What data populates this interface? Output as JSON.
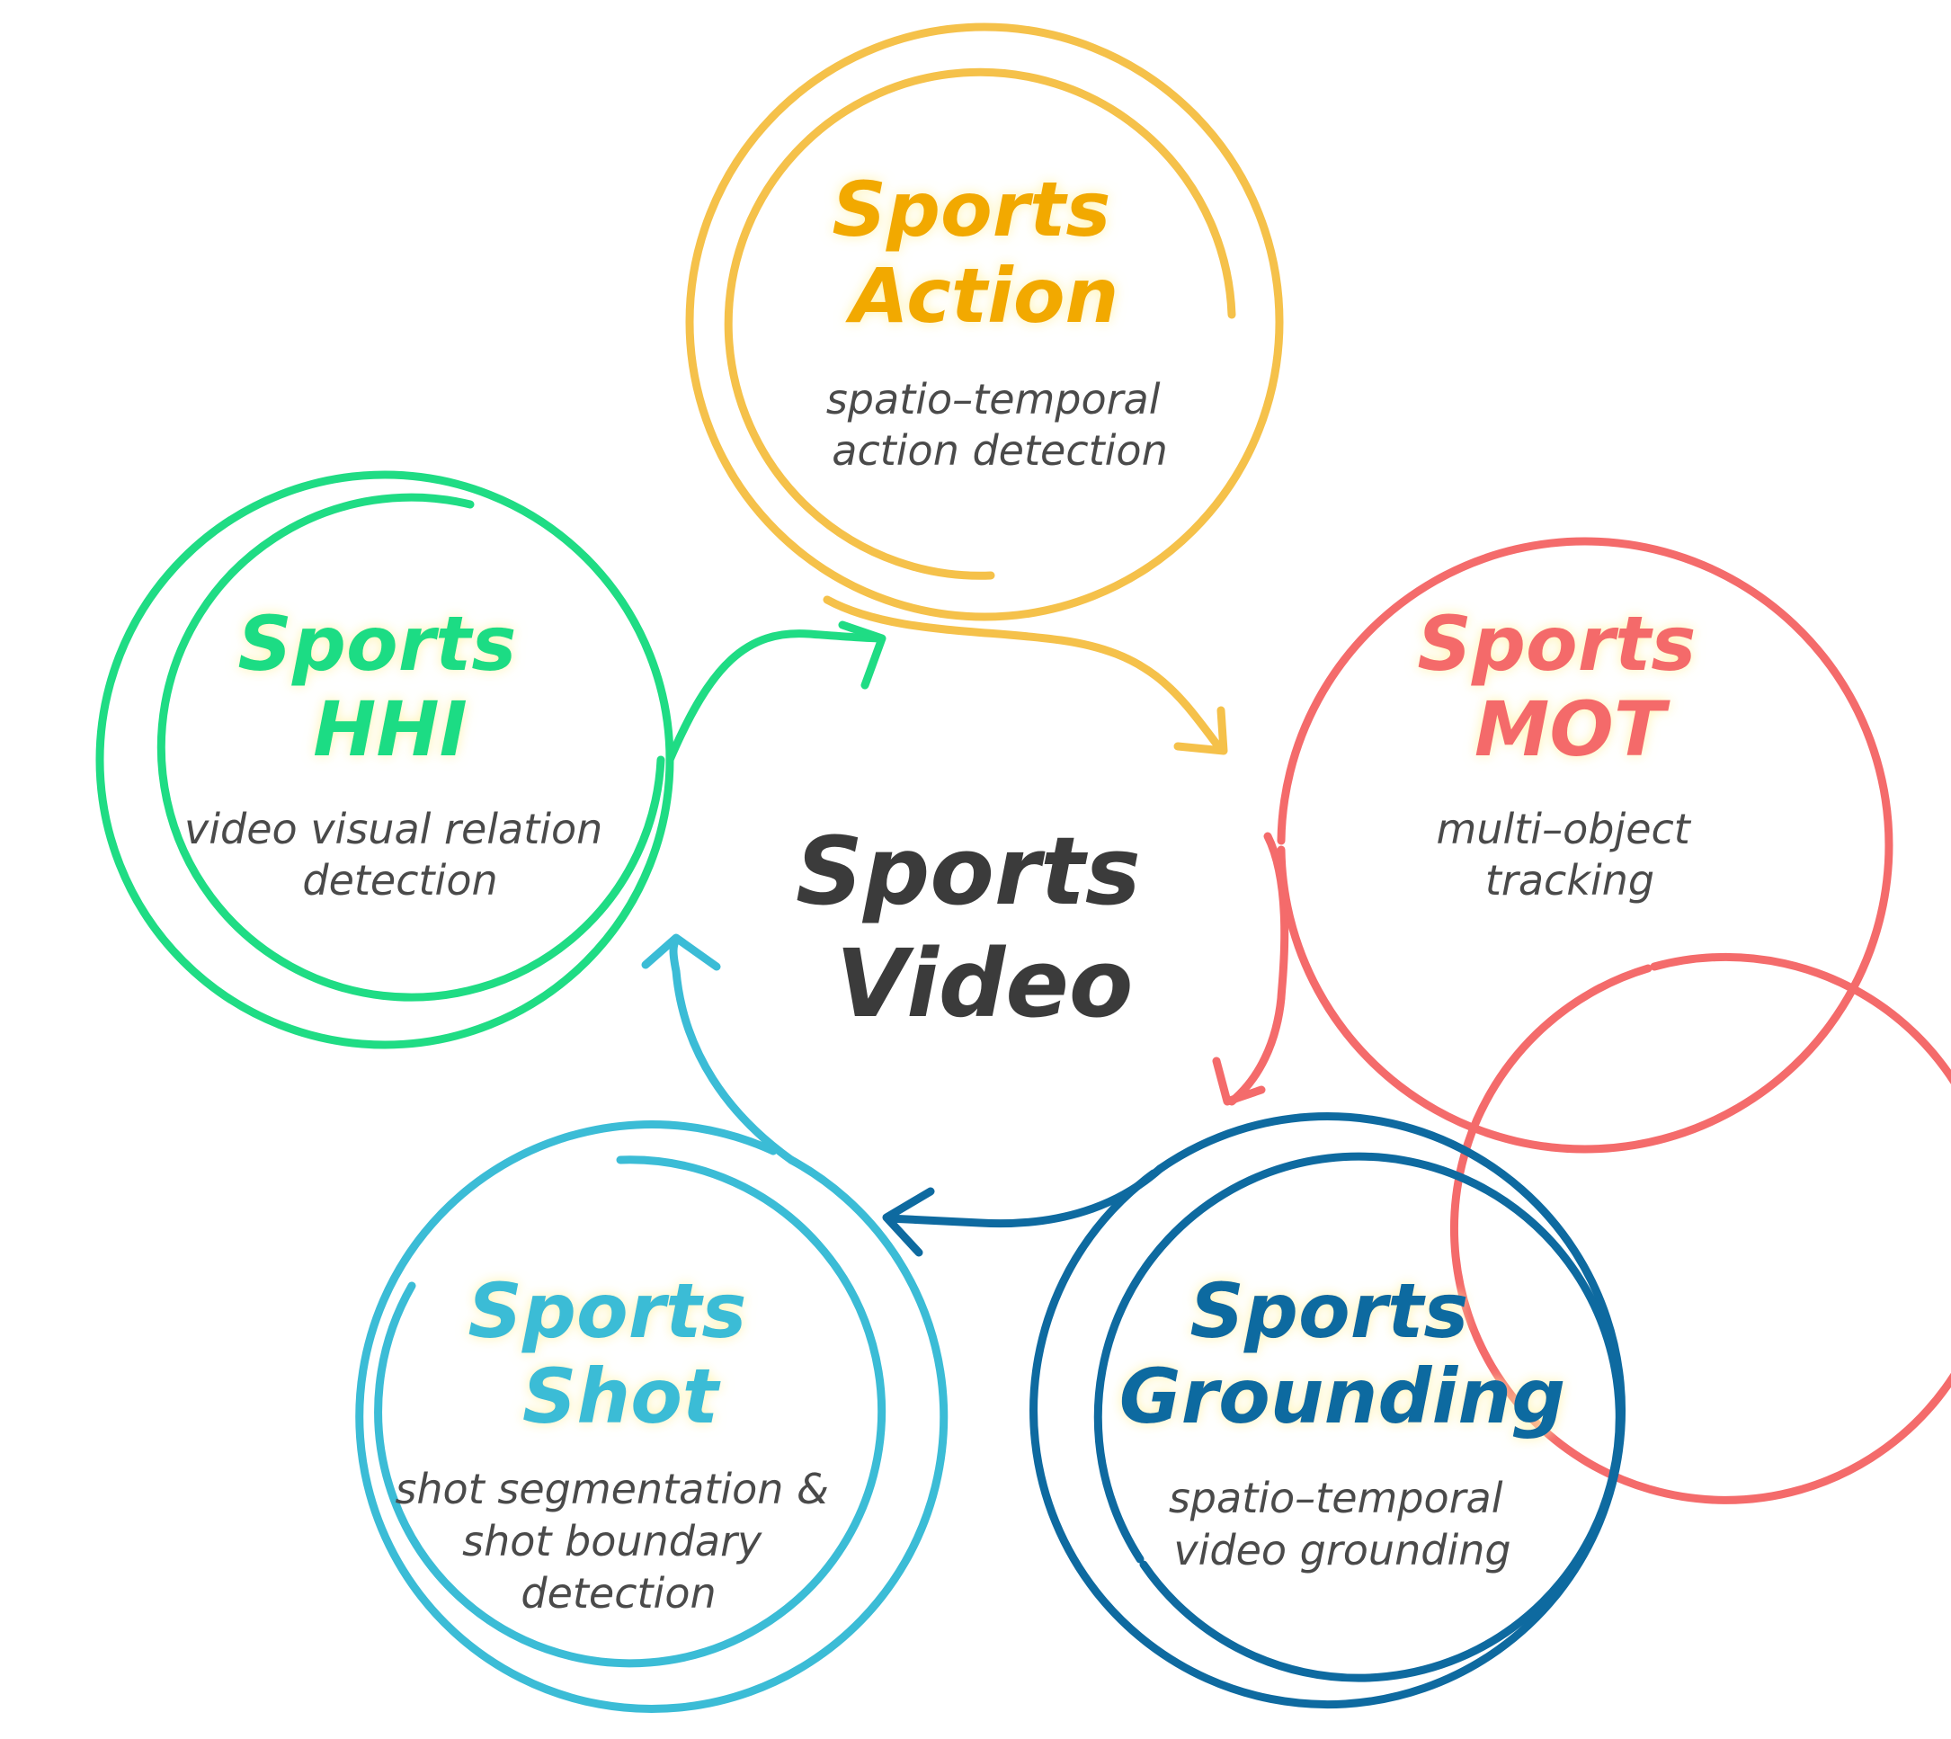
{
  "center": {
    "line1": "Sports",
    "line2": "Video"
  },
  "nodes": {
    "action": {
      "title1": "Sports",
      "title2": "Action",
      "desc": [
        "spatio–temporal",
        "action detection"
      ],
      "color": "#f5c14a",
      "title_color": "#f2a900"
    },
    "mot": {
      "title1": "Sports",
      "title2": "MOT",
      "desc": [
        "multi–object",
        "tracking"
      ],
      "color": "#f46b6b",
      "title_color": "#f46b6b"
    },
    "grounding": {
      "title1": "Sports",
      "title2": "Grounding",
      "desc": [
        "spatio–temporal",
        "video grounding"
      ],
      "color": "#0e6aa0",
      "title_color": "#0e6aa0"
    },
    "shot": {
      "title1": "Sports",
      "title2": "Shot",
      "desc": [
        "shot segmentation &",
        "shot boundary",
        "detection"
      ],
      "color": "#3bbcd6",
      "title_color": "#3bbcd6"
    },
    "hhi": {
      "title1": "Sports",
      "title2": "HHI",
      "desc": [
        "video visual relation",
        "detection"
      ],
      "color": "#1fdc84",
      "title_color": "#1fdc84"
    }
  }
}
